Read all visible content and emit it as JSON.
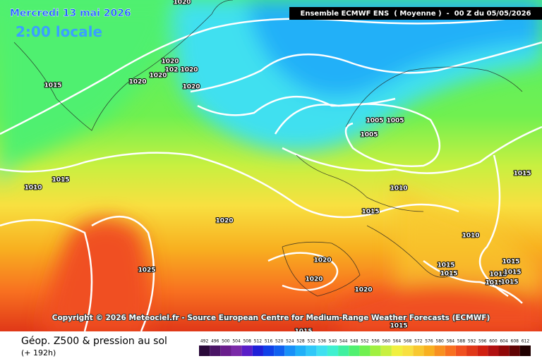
{
  "header": {
    "date": "Mercredi 13 mai 2026",
    "time": "2:00 locale",
    "run": "Ensemble ECMWF ENS  ( Moyenne )  -  00 Z du 05/05/2026"
  },
  "copyright": "Copyright © 2026 Meteociel.fr - Source European Centre for Medium-Range Weather Forecasts (ECMWF)",
  "footer": {
    "title": "Géop. Z500 & pression au sol",
    "subtitle": "(+ 192h)"
  },
  "legend": {
    "labels": [
      "492",
      "496",
      "500",
      "504",
      "508",
      "512",
      "516",
      "520",
      "524",
      "528",
      "532",
      "536",
      "540",
      "544",
      "548",
      "552",
      "556",
      "560",
      "564",
      "568",
      "572",
      "576",
      "580",
      "584",
      "588",
      "592",
      "596",
      "600",
      "604",
      "608",
      "612"
    ],
    "colors": [
      "#2a0a3a",
      "#4b1566",
      "#6a1e8c",
      "#7a2aa8",
      "#5a1ec8",
      "#2020d8",
      "#1040e8",
      "#1060f0",
      "#1890f8",
      "#20b0f8",
      "#30c8f8",
      "#40e0f0",
      "#40f0d0",
      "#40f0a0",
      "#50f070",
      "#70f050",
      "#a0f040",
      "#c8f040",
      "#f0f040",
      "#f8e040",
      "#f8c830",
      "#f8b020",
      "#f89020",
      "#f87020",
      "#f05020",
      "#e03818",
      "#d02010",
      "#b01010",
      "#900808",
      "#600404",
      "#200000"
    ]
  },
  "isobar_labels": [
    "1020",
    "1020",
    "1020",
    "102",
    "1020",
    "1020",
    "1020",
    "1015",
    "1015",
    "1010",
    "1020",
    "1025",
    "1005",
    "1005",
    "1005",
    "1010",
    "1015",
    "1015",
    "1010",
    "1020",
    "1020",
    "1020",
    "1015",
    "1015",
    "1015",
    "1015",
    "1015",
    "1015",
    "1015",
    "1015",
    "1015"
  ]
}
